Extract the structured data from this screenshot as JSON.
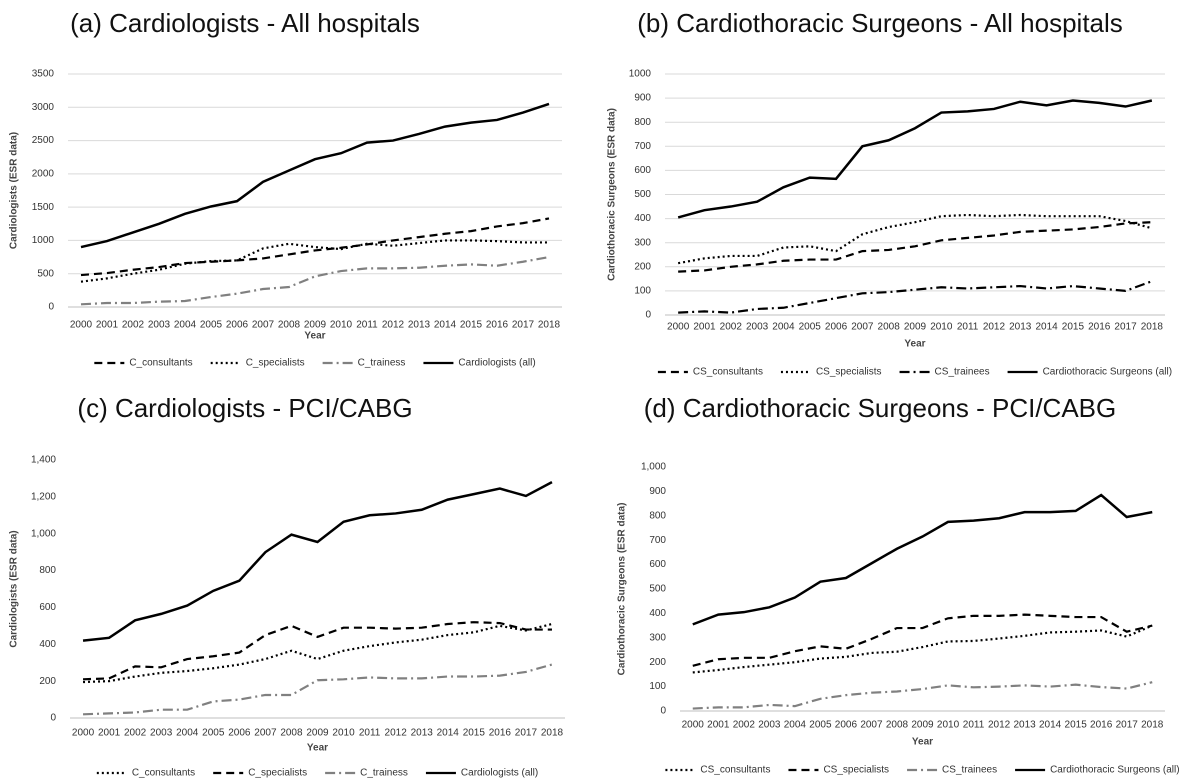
{
  "chart_data": [
    {
      "type": "line",
      "title": "(a) Cardiologists - All hospitals",
      "x_label": "Year",
      "y_label": "Cardiologists (ESR data)",
      "categories": [
        "2000",
        "2001",
        "2002",
        "2003",
        "2004",
        "2005",
        "2006",
        "2007",
        "2008",
        "2009",
        "2010",
        "2011",
        "2012",
        "2013",
        "2014",
        "2015",
        "2016",
        "2017",
        "2018"
      ],
      "ylim": [
        0,
        3500
      ],
      "yticks": [
        0,
        500,
        1000,
        1500,
        2000,
        2500,
        3000,
        3500
      ],
      "grid": true,
      "series": [
        {
          "name": "C_consultants",
          "color": "#000000",
          "dash": "dashed",
          "values": [
            480,
            510,
            560,
            600,
            660,
            680,
            700,
            730,
            790,
            850,
            890,
            940,
            1000,
            1050,
            1100,
            1140,
            1210,
            1260,
            1330
          ]
        },
        {
          "name": "C_specialists",
          "color": "#000000",
          "dash": "dotted",
          "values": [
            380,
            430,
            500,
            560,
            650,
            690,
            700,
            880,
            950,
            900,
            870,
            950,
            920,
            960,
            1000,
            1000,
            990,
            970,
            970
          ]
        },
        {
          "name": "C_trainess",
          "color": "#808080",
          "dash": "dashdot",
          "values": [
            40,
            60,
            60,
            80,
            90,
            150,
            200,
            270,
            300,
            460,
            540,
            580,
            580,
            590,
            620,
            640,
            620,
            680,
            750
          ]
        },
        {
          "name": "Cardiologists (all)",
          "color": "#000000",
          "dash": "solid",
          "values": [
            900,
            990,
            1120,
            1250,
            1400,
            1510,
            1590,
            1880,
            2050,
            2220,
            2310,
            2470,
            2500,
            2600,
            2710,
            2770,
            2810,
            2920,
            3050
          ]
        }
      ]
    },
    {
      "type": "line",
      "title": "(b) Cardiothoracic Surgeons - All hospitals",
      "x_label": "Year",
      "y_label": "Cardiothoracic Surgeons (ESR data)",
      "categories": [
        "2000",
        "2001",
        "2002",
        "2003",
        "2004",
        "2005",
        "2006",
        "2007",
        "2008",
        "2009",
        "2010",
        "2011",
        "2012",
        "2013",
        "2014",
        "2015",
        "2016",
        "2017",
        "2018"
      ],
      "ylim": [
        0,
        1000
      ],
      "yticks": [
        0,
        100,
        200,
        300,
        400,
        500,
        600,
        700,
        800,
        900,
        1000
      ],
      "grid": true,
      "series": [
        {
          "name": "CS_consultants",
          "color": "#000000",
          "dash": "dashed",
          "values": [
            180,
            185,
            200,
            210,
            225,
            230,
            230,
            265,
            270,
            285,
            310,
            320,
            330,
            345,
            350,
            355,
            365,
            380,
            385
          ]
        },
        {
          "name": "CS_specialists",
          "color": "#000000",
          "dash": "dotted",
          "values": [
            215,
            235,
            245,
            245,
            280,
            285,
            265,
            335,
            365,
            385,
            410,
            415,
            410,
            415,
            410,
            410,
            410,
            390,
            360
          ]
        },
        {
          "name": "CS_trainees",
          "color": "#000000",
          "dash": "dashdot",
          "values": [
            10,
            15,
            10,
            25,
            30,
            50,
            70,
            90,
            95,
            105,
            115,
            110,
            115,
            120,
            110,
            120,
            110,
            100,
            140
          ]
        },
        {
          "name": "Cardiothoracic Surgeons (all)",
          "color": "#000000",
          "dash": "solid",
          "values": [
            405,
            435,
            450,
            470,
            530,
            570,
            565,
            700,
            725,
            775,
            840,
            845,
            855,
            885,
            870,
            890,
            880,
            865,
            890
          ]
        }
      ]
    },
    {
      "type": "line",
      "title": "(c) Cardiologists - PCI/CABG",
      "x_label": "Year",
      "y_label": "Cardiologists (ESR data)",
      "categories": [
        "2000",
        "2001",
        "2002",
        "2003",
        "2004",
        "2005",
        "2006",
        "2007",
        "2008",
        "2009",
        "2010",
        "2011",
        "2012",
        "2013",
        "2014",
        "2015",
        "2016",
        "2017",
        "2018"
      ],
      "ylim": [
        0,
        1400
      ],
      "yticks": [
        0,
        200,
        400,
        600,
        800,
        {
          "value": 1000,
          "label": "1,000"
        },
        {
          "value": 1200,
          "label": "1,200"
        },
        {
          "value": 1400,
          "label": "1,400"
        }
      ],
      "grid": false,
      "series": [
        {
          "name": "C_consultants",
          "color": "#000000",
          "dash": "dotted",
          "values": [
            195,
            200,
            225,
            245,
            255,
            270,
            290,
            320,
            365,
            320,
            365,
            390,
            410,
            425,
            450,
            465,
            500,
            475,
            510
          ]
        },
        {
          "name": "C_specialists",
          "color": "#000000",
          "dash": "dashed",
          "values": [
            210,
            215,
            280,
            275,
            320,
            335,
            355,
            450,
            500,
            440,
            490,
            490,
            485,
            490,
            510,
            520,
            515,
            480,
            480
          ]
        },
        {
          "name": "C_trainess",
          "color": "#808080",
          "dash": "dashdot",
          "values": [
            20,
            25,
            30,
            45,
            45,
            90,
            100,
            125,
            125,
            205,
            210,
            220,
            215,
            215,
            225,
            225,
            230,
            250,
            290
          ]
        },
        {
          "name": "Cardiologists (all)",
          "color": "#000000",
          "dash": "solid",
          "values": [
            420,
            435,
            530,
            565,
            610,
            690,
            745,
            900,
            995,
            955,
            1065,
            1100,
            1110,
            1130,
            1185,
            1215,
            1245,
            1205,
            1280
          ]
        }
      ]
    },
    {
      "type": "line",
      "title": "(d) Cardiothoracic Surgeons - PCI/CABG",
      "x_label": "Year",
      "y_label": "Cardiothoracic Surgeons (ESR data)",
      "categories": [
        "2000",
        "2001",
        "2002",
        "2003",
        "2004",
        "2005",
        "2006",
        "2007",
        "2008",
        "2009",
        "2010",
        "2011",
        "2012",
        "2013",
        "2014",
        "2015",
        "2016",
        "2017",
        "2018"
      ],
      "ylim": [
        0,
        1000
      ],
      "yticks": [
        0,
        100,
        200,
        300,
        400,
        500,
        600,
        700,
        800,
        900,
        {
          "value": 1000,
          "label": "1,000"
        }
      ],
      "grid": false,
      "series": [
        {
          "name": "CS_consultants",
          "color": "#000000",
          "dash": "dotted",
          "values": [
            158,
            168,
            180,
            190,
            200,
            215,
            222,
            238,
            243,
            262,
            285,
            287,
            297,
            308,
            322,
            325,
            330,
            305,
            350
          ]
        },
        {
          "name": "CS_specialists",
          "color": "#000000",
          "dash": "dashed",
          "values": [
            185,
            212,
            218,
            218,
            245,
            265,
            255,
            295,
            340,
            340,
            380,
            390,
            390,
            395,
            390,
            385,
            385,
            325,
            350
          ]
        },
        {
          "name": "CS_trainees",
          "color": "#808080",
          "dash": "dashdot",
          "values": [
            10,
            15,
            15,
            25,
            20,
            50,
            65,
            75,
            80,
            90,
            105,
            97,
            100,
            105,
            100,
            108,
            98,
            92,
            118
          ]
        },
        {
          "name": "Cardiothoracic Surgeons (all)",
          "color": "#000000",
          "dash": "solid",
          "values": [
            355,
            395,
            405,
            425,
            465,
            530,
            545,
            605,
            665,
            715,
            775,
            780,
            790,
            815,
            815,
            820,
            885,
            795,
            815
          ]
        }
      ]
    }
  ]
}
